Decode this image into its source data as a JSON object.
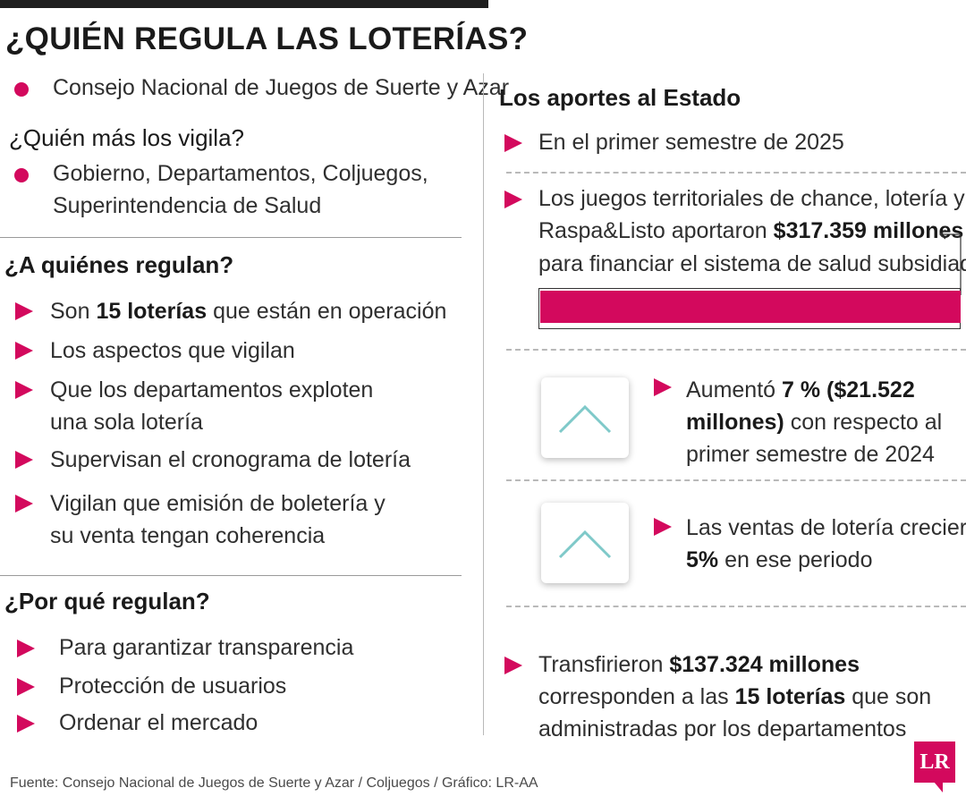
{
  "title": "¿QUIÉN REGULA LAS LOTERÍAS?",
  "colors": {
    "accent": "#d3095d",
    "teal_arrow": "#7fc9c9"
  },
  "regulator": {
    "item": "Consejo Nacional de Juegos de Suerte y Azar"
  },
  "vigilance": {
    "heading": "¿Quién más los vigila?",
    "item_line1": "Gobierno, Departamentos, Coljuegos,",
    "item_line2": "Superintendencia de Salud"
  },
  "whom": {
    "heading": "¿A quiénes regulan?",
    "item1": {
      "pre": "Son ",
      "bold": "15 loterías",
      "post": " que están en operación"
    },
    "item2": "Los aspectos que vigilan",
    "item3_line1": "Que los departamentos exploten",
    "item3_line2": "una sola lotería",
    "item4": "Supervisan el cronograma de lotería",
    "item5_line1": "Vigilan que emisión de boletería y",
    "item5_line2": "su venta tengan coherencia"
  },
  "why": {
    "heading": "¿Por qué regulan?",
    "items": [
      "Para garantizar transparencia",
      "Protección de usuarios",
      "Ordenar el mercado"
    ]
  },
  "contrib": {
    "heading": "Los aportes al Estado",
    "item1": "En el primer semestre de 2025",
    "item2_line1": "Los juegos territoriales de chance, lotería y",
    "item2_line2_pre": "Raspa&Listo aportaron ",
    "item2_line2_bold": "$317.359 millones",
    "item2_line3": "para financiar el sistema de salud subsidiado",
    "growth1_line1_pre": "Aumentó ",
    "growth1_line1_bold": "7 % ($21.522",
    "growth1_line2_bold": "millones)",
    "growth1_line2_post": " con respecto al",
    "growth1_line3": "primer semestre de 2024",
    "growth2_line1": "Las ventas de lotería crecieron",
    "growth2_line2_bold": "5%",
    "growth2_line2_post": " en ese periodo",
    "transfer_line1_pre": "Transfirieron ",
    "transfer_line1_bold": "$137.324 millones",
    "transfer_line2_pre": "corresponden a las ",
    "transfer_line2_bold": "15 loterías",
    "transfer_line2_post": " que son",
    "transfer_line3": "administradas por los departamentos"
  },
  "icons": {
    "bullet": "pink-dot",
    "list_marker": "pink-triangle",
    "trend": "chevron-up-icon"
  },
  "source": "Fuente: Consejo Nacional de Juegos de Suerte y Azar / Coljuegos / Gráfico: LR-AA",
  "logo": "LR"
}
